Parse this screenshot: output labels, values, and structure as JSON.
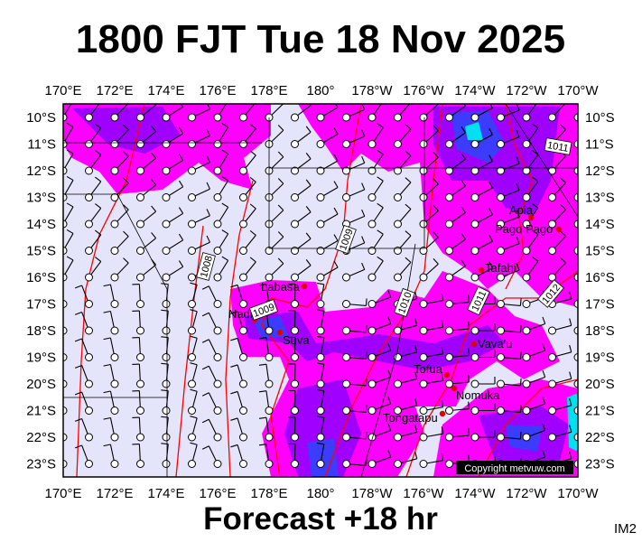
{
  "title": "1800 FJT Tue 18 Nov 2025",
  "footer": "Forecast +18 hr",
  "image_code": "IM2",
  "copyright": "Copyright metvuw.com",
  "longitude_labels": [
    "170°E",
    "172°E",
    "174°E",
    "176°E",
    "178°E",
    "180°",
    "178°W",
    "176°W",
    "174°W",
    "172°W",
    "170°W"
  ],
  "latitude_labels": [
    "10°S",
    "11°S",
    "12°S",
    "13°S",
    "14°S",
    "15°S",
    "16°S",
    "17°S",
    "18°S",
    "19°S",
    "20°S",
    "21°S",
    "22°S",
    "23°S"
  ],
  "places": [
    {
      "name": "Labasa"
    },
    {
      "name": "Nadi"
    },
    {
      "name": "Suva"
    },
    {
      "name": "Tofua"
    },
    {
      "name": "Vava'u"
    },
    {
      "name": "Nomuka"
    },
    {
      "name": "Tongatapu"
    },
    {
      "name": "Tafahi"
    },
    {
      "name": "Apia"
    },
    {
      "name": "Pago Pago"
    }
  ],
  "isobar_labels": [
    "1008",
    "1009",
    "1009",
    "1010",
    "1011",
    "1011",
    "1012"
  ],
  "colors": {
    "background": "#e4e4fa",
    "rain_light": "#ff00ff",
    "rain_medium": "#a000ff",
    "rain_heavy": "#3c3cff",
    "rain_extreme": "#00e0f0",
    "isobar": "#ff0000",
    "town": "#e00000"
  }
}
